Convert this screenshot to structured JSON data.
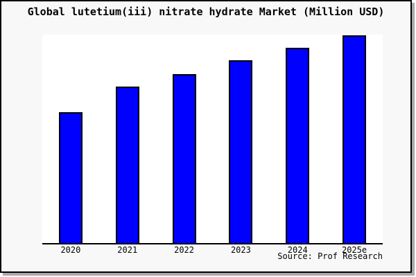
{
  "title": "Global lutetium(iii) nitrate hydrate Market (Million USD)",
  "footer": {
    "source": "Source: Prof Research"
  },
  "colors": {
    "bar_fill": "#0000ff",
    "bar_edge": "#000000",
    "frame_background": "#f8f8f8",
    "plot_background": "#ffffff",
    "axis": "#000000",
    "text": "#000000"
  },
  "chart_data": {
    "type": "bar",
    "title": "Global lutetium(iii) nitrate hydrate Market (Million USD)",
    "categories": [
      "2020",
      "2021",
      "2022",
      "2023",
      "2024",
      "2025e"
    ],
    "values": [
      62.8,
      75.1,
      81.1,
      87.7,
      93.7,
      99.7
    ],
    "value_scale_note": "no y-axis ticks or value labels shown; values estimated as percent of plot height (2025e ~ 99.7)",
    "unit": "Million USD",
    "xlabel": "",
    "ylabel": "",
    "ylim": [
      0,
      100
    ],
    "grid": false,
    "legend": false,
    "y_axis_visible": false,
    "source": "Source: Prof Research"
  }
}
